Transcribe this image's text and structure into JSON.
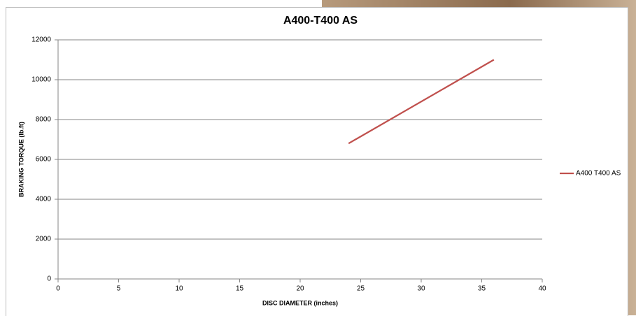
{
  "chart_data": {
    "type": "line",
    "title": "A400-T400 AS",
    "x_label": "DISC DIAMETER (inches)",
    "y_label": "BRAKING TORQUE (lb.ft)",
    "x": [
      24,
      36
    ],
    "series": [
      {
        "name": "A400 T400 AS",
        "color": "#c0504d",
        "values": [
          6800,
          11000
        ]
      }
    ],
    "xlim": [
      0,
      40
    ],
    "xticks": [
      0,
      5,
      10,
      15,
      20,
      25,
      30,
      35,
      40
    ],
    "ylim": [
      0,
      12000
    ],
    "yticks": [
      0,
      2000,
      4000,
      6000,
      8000,
      10000,
      12000
    ],
    "grid": true,
    "legend": "right"
  }
}
